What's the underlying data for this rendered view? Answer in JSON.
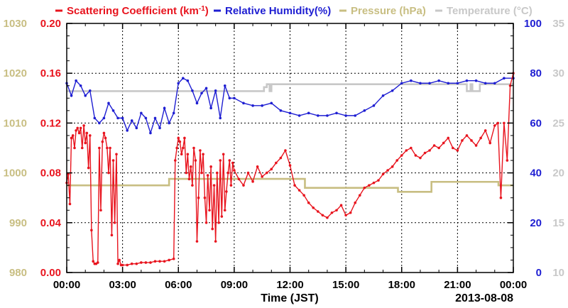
{
  "chart_data": {
    "type": "line",
    "legend": [
      {
        "key": "scat",
        "text": "Scattering Coefficient (km",
        "sup": "-1",
        "tail": ")",
        "color": "#e8141e"
      },
      {
        "key": "rh",
        "text": "Relative Humidity(%)",
        "color": "#1e1ed2"
      },
      {
        "key": "press",
        "text": "Pressure (hPa)",
        "color": "#c8be82"
      },
      {
        "key": "temp",
        "text": "Temperature (°C)",
        "color": "#c8c8c8"
      }
    ],
    "xlabel": "Time (JST)",
    "date_label": "2013-08-08",
    "x_ticks": [
      "00:00",
      "03:00",
      "06:00",
      "09:00",
      "12:00",
      "15:00",
      "18:00",
      "21:00",
      "00:00"
    ],
    "xlim_hours": [
      0,
      24
    ],
    "axes": {
      "scattering": {
        "ticks": [
          "0.00",
          "0.04",
          "0.08",
          "0.12",
          "0.16",
          "0.20"
        ],
        "lim": [
          0,
          0.2
        ],
        "color": "#e8141e"
      },
      "pressure": {
        "ticks": [
          "980",
          "990",
          "1000",
          "1010",
          "1020",
          "1030"
        ],
        "lim": [
          980,
          1030
        ],
        "color": "#c8be82"
      },
      "humidity": {
        "ticks": [
          "0",
          "20",
          "40",
          "60",
          "80",
          "100"
        ],
        "lim": [
          0,
          100
        ],
        "color": "#1e1ed2"
      },
      "temperature": {
        "ticks": [
          "10",
          "15",
          "20",
          "25",
          "30",
          "35"
        ],
        "lim": [
          10,
          35
        ],
        "color": "#c8c8c8"
      }
    },
    "grid": true,
    "series": [
      {
        "name": "Scattering Coefficient (km-1)",
        "axis": "scattering",
        "markers": true,
        "x": [
          0,
          0.08,
          0.17,
          0.25,
          0.33,
          0.42,
          0.5,
          0.58,
          0.67,
          0.75,
          0.83,
          0.92,
          1,
          1.08,
          1.17,
          1.25,
          1.33,
          1.42,
          1.5,
          1.58,
          1.67,
          1.75,
          1.83,
          1.92,
          2,
          2.08,
          2.17,
          2.25,
          2.33,
          2.42,
          2.5,
          2.58,
          2.67,
          2.75,
          2.83,
          2.92,
          3,
          3.25,
          3.5,
          3.75,
          4,
          4.25,
          4.5,
          4.75,
          5,
          5.25,
          5.5,
          5.75,
          5.83,
          5.92,
          6,
          6.08,
          6.17,
          6.25,
          6.33,
          6.42,
          6.5,
          6.58,
          6.67,
          6.75,
          6.83,
          6.92,
          7,
          7.08,
          7.17,
          7.25,
          7.33,
          7.42,
          7.5,
          7.58,
          7.67,
          7.75,
          7.83,
          7.92,
          8,
          8.08,
          8.17,
          8.25,
          8.33,
          8.42,
          8.5,
          8.58,
          8.67,
          8.75,
          8.83,
          8.92,
          9,
          9.25,
          9.5,
          9.75,
          10,
          10.25,
          10.5,
          10.75,
          11,
          11.25,
          11.5,
          11.75,
          12,
          12.25,
          12.5,
          12.75,
          13,
          13.25,
          13.5,
          13.75,
          14,
          14.25,
          14.5,
          14.75,
          15,
          15.25,
          15.5,
          15.75,
          16,
          16.25,
          16.5,
          16.75,
          17,
          17.25,
          17.5,
          17.75,
          18,
          18.25,
          18.5,
          18.75,
          19,
          19.25,
          19.5,
          19.75,
          20,
          20.25,
          20.5,
          20.75,
          21,
          21.25,
          21.5,
          21.75,
          22,
          22.25,
          22.5,
          22.75,
          23,
          23.17,
          23.33,
          23.5,
          23.67,
          23.83,
          24
        ],
        "y": [
          0.072,
          0.079,
          0.055,
          0.108,
          0.11,
          0.1,
          0.114,
          0.116,
          0.112,
          0.116,
          0.1,
          0.118,
          0.104,
          0.112,
          0.084,
          0.11,
          0.034,
          0.009,
          0.007,
          0.007,
          0.008,
          0.1,
          0.05,
          0.105,
          0.112,
          0.108,
          0.1,
          0.08,
          0.1,
          0.03,
          0.09,
          0.04,
          0.095,
          0.007,
          0.01,
          0.006,
          0.006,
          0.006,
          0.007,
          0.007,
          0.008,
          0.008,
          0.008,
          0.009,
          0.009,
          0.009,
          0.01,
          0.011,
          0.09,
          0.1,
          0.108,
          0.105,
          0.095,
          0.1,
          0.108,
          0.08,
          0.095,
          0.075,
          0.085,
          0.07,
          0.1,
          0.09,
          0.025,
          0.06,
          0.098,
          0.08,
          0.095,
          0.06,
          0.04,
          0.078,
          0.05,
          0.085,
          0.035,
          0.07,
          0.025,
          0.08,
          0.04,
          0.09,
          0.045,
          0.095,
          0.05,
          0.065,
          0.08,
          0.09,
          0.07,
          0.088,
          0.082,
          0.075,
          0.07,
          0.08,
          0.073,
          0.085,
          0.077,
          0.08,
          0.083,
          0.088,
          0.092,
          0.098,
          0.086,
          0.07,
          0.066,
          0.062,
          0.056,
          0.052,
          0.049,
          0.046,
          0.044,
          0.048,
          0.05,
          0.054,
          0.046,
          0.048,
          0.056,
          0.062,
          0.068,
          0.07,
          0.072,
          0.074,
          0.079,
          0.082,
          0.085,
          0.09,
          0.094,
          0.098,
          0.1,
          0.094,
          0.092,
          0.096,
          0.098,
          0.102,
          0.1,
          0.104,
          0.108,
          0.1,
          0.098,
          0.106,
          0.11,
          0.106,
          0.102,
          0.108,
          0.114,
          0.104,
          0.118,
          0.12,
          0.06,
          0.12,
          0.09,
          0.15,
          0.16
        ]
      },
      {
        "name": "Relative Humidity(%)",
        "axis": "humidity",
        "markers": true,
        "x": [
          0,
          0.25,
          0.5,
          0.75,
          1,
          1.25,
          1.5,
          1.75,
          2,
          2.25,
          2.5,
          2.75,
          3,
          3.25,
          3.5,
          3.75,
          4,
          4.25,
          4.5,
          4.75,
          5,
          5.25,
          5.5,
          5.75,
          6,
          6.25,
          6.5,
          6.75,
          7,
          7.25,
          7.5,
          7.75,
          8,
          8.25,
          8.5,
          8.75,
          9,
          9.5,
          10,
          10.5,
          11,
          11.5,
          12,
          12.5,
          13,
          13.5,
          14,
          14.5,
          15,
          15.5,
          16,
          16.5,
          17,
          17.5,
          18,
          18.5,
          19,
          19.5,
          20,
          20.5,
          21,
          21.5,
          22,
          22.5,
          23,
          23.5,
          24
        ],
        "y": [
          76,
          71,
          77,
          75,
          71,
          73,
          62,
          60,
          62,
          68,
          65,
          62,
          62,
          57,
          61,
          58,
          64,
          62,
          56,
          62,
          58,
          66,
          60,
          64,
          76,
          78,
          77,
          73,
          68,
          72,
          74,
          66,
          73,
          62,
          75,
          70,
          70,
          68,
          67,
          67,
          68,
          65,
          64,
          63,
          64,
          63,
          63,
          64,
          63,
          63,
          65,
          67,
          71,
          73,
          76,
          77,
          76,
          76,
          77,
          76,
          76,
          77,
          77,
          76,
          76,
          78,
          78
        ]
      },
      {
        "name": "Pressure (hPa)",
        "axis": "pressure",
        "markers": false,
        "x": [
          0,
          5.5,
          5.5,
          12.8,
          12.8,
          17.8,
          17.8,
          19.6,
          19.6,
          23.2,
          23.2,
          24
        ],
        "y": [
          997.5,
          997.5,
          998.8,
          998.8,
          997.0,
          997.0,
          996.2,
          996.2,
          998.2,
          998.2,
          997.5,
          997.5
        ]
      },
      {
        "name": "Temperature (°C)",
        "axis": "temperature",
        "markers": false,
        "x": [
          0,
          10.6,
          10.6,
          10.75,
          10.75,
          10.9,
          10.9,
          11,
          11,
          21.5,
          21.5,
          21.7,
          21.7,
          21.8,
          21.8,
          22.2,
          22.2,
          24
        ],
        "y": [
          28.2,
          28.2,
          28.6,
          28.6,
          28.9,
          28.9,
          28.2,
          28.2,
          28.9,
          28.9,
          28.2,
          28.2,
          28.9,
          28.9,
          28.2,
          28.2,
          28.9,
          28.9
        ]
      }
    ]
  }
}
